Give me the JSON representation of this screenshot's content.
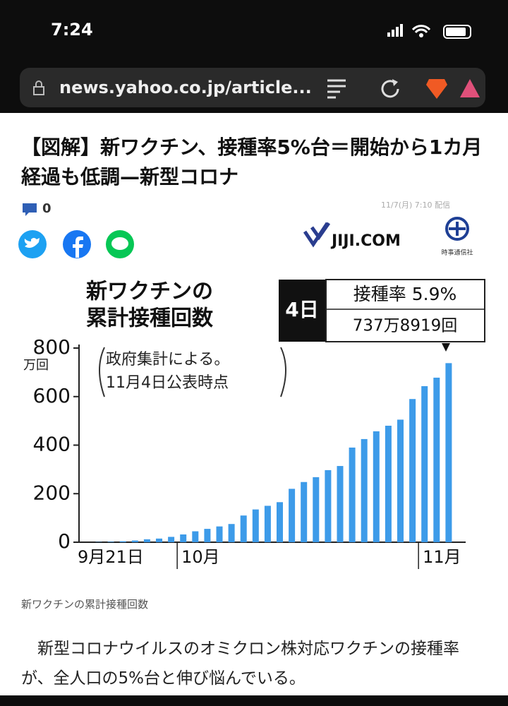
{
  "status_bar": {
    "time": "7:24"
  },
  "url_bar": {
    "url": "news.yahoo.co.jp/article..."
  },
  "article": {
    "title": "【図解】新ワクチン、接種率5%台＝開始から1カ月経過も低調—新型コロナ",
    "comment_count": "0",
    "date": "11/7(月) 7:10 配信",
    "logo": {
      "name": "JIJI.COM",
      "company": "時事通信社"
    },
    "caption": "新ワクチンの累計接種回数",
    "body": "新型コロナウイルスのオミクロン株対応ワクチンの接種率が、全人口の5%台と伸び悩んでいる。"
  },
  "chart_data": {
    "type": "bar",
    "title_lines": [
      "新ワクチンの",
      "累計接種回数"
    ],
    "y_unit": "万回",
    "note_lines": [
      "政府集計による。",
      "11月4日公表時点"
    ],
    "callout": {
      "day": "4日",
      "rate": "接種率 5.9%",
      "count": "737万8919回"
    },
    "categories": [
      "9月21日",
      null,
      null,
      null,
      null,
      null,
      null,
      "10月",
      null,
      null,
      null,
      null,
      null,
      null,
      null,
      null,
      null,
      null,
      null,
      null,
      null,
      null,
      null,
      null,
      null,
      null,
      null,
      "11月",
      null,
      null
    ],
    "values": [
      1,
      2,
      4,
      7,
      12,
      15,
      22,
      32,
      45,
      55,
      65,
      75,
      110,
      135,
      150,
      165,
      220,
      248,
      268,
      297,
      314,
      390,
      425,
      457,
      480,
      505,
      590,
      643,
      678,
      737.8919
    ],
    "color": "#3d9be9",
    "ylim": [
      0,
      800
    ],
    "yticks": [
      0,
      200,
      400,
      600,
      800
    ]
  }
}
